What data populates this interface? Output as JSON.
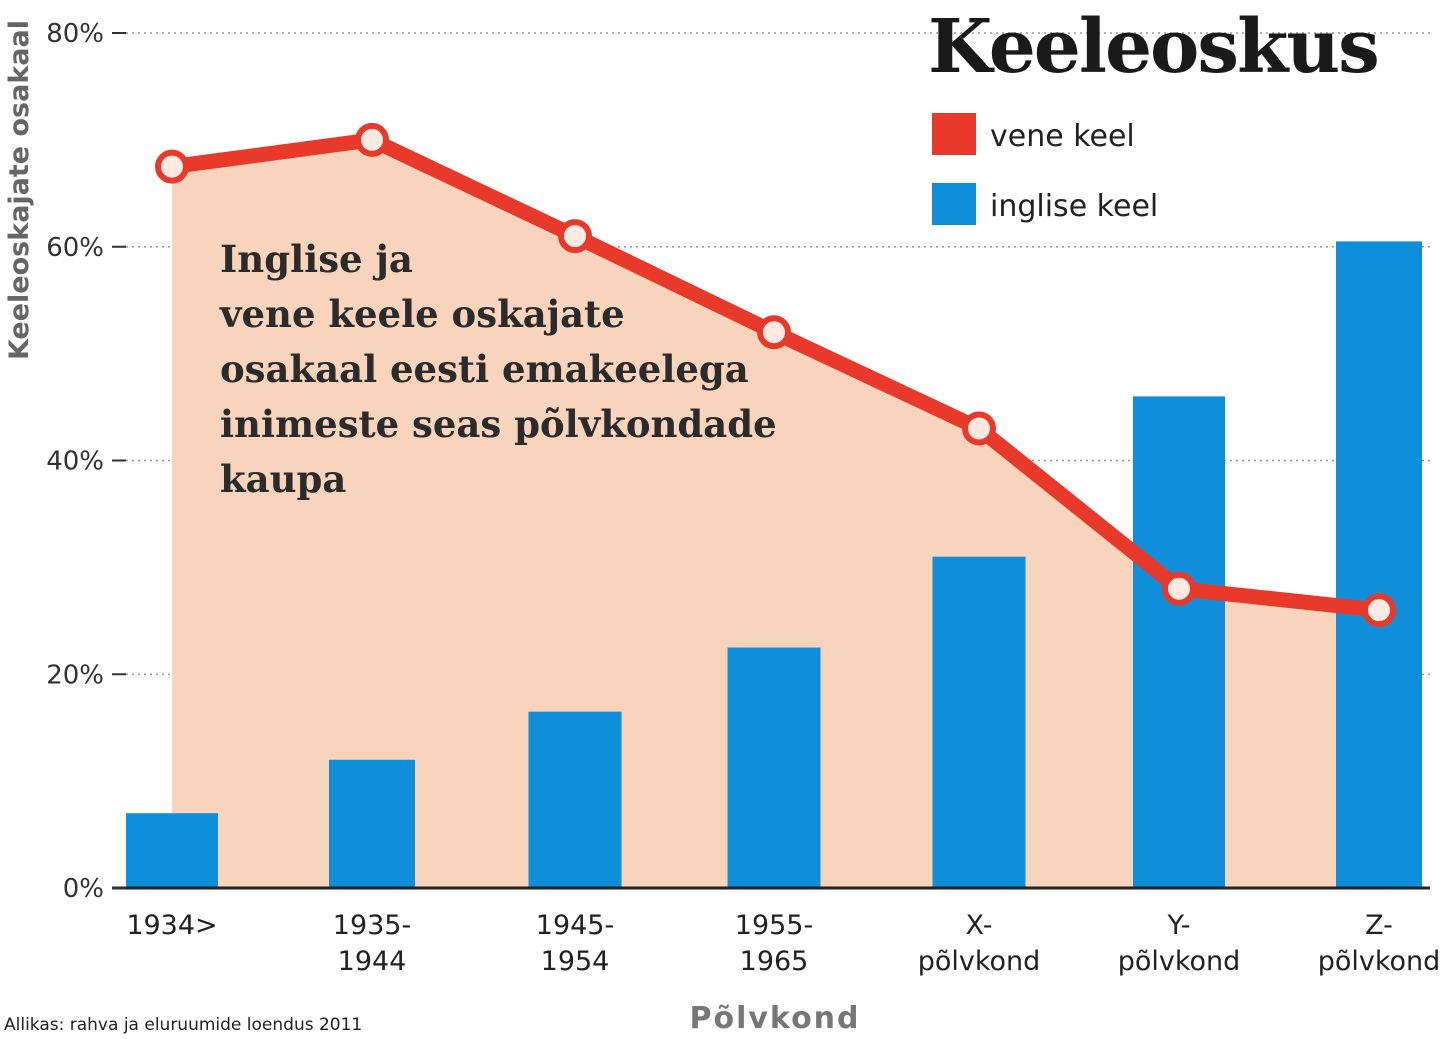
{
  "chart_data": {
    "type": "bar+line",
    "title": "Keeleoskus",
    "subtitle": "Inglise ja\nvene keele oskajate\nosakaal eesti emakeelega\ninimeste seas põlvkondade\nkaupa",
    "xlabel": "Põlvkond",
    "ylabel": "Keeleoskajate osakaal",
    "ylim": [
      0,
      80
    ],
    "yticks": [
      "0%",
      "20%",
      "40%",
      "60%",
      "80%"
    ],
    "ytick_values": [
      0,
      20,
      40,
      60,
      80
    ],
    "grid": "horizontal dotted",
    "legend_position": "top-right",
    "categories": [
      "1934>",
      "1935-\n1944",
      "1945-\n1954",
      "1955-\n1965",
      "X-\npõlvkond",
      "Y-\npõlvkond",
      "Z-\npõlvkond"
    ],
    "series": [
      {
        "name": "vene keel",
        "type": "line",
        "color": "#e8392b",
        "values": [
          67.5,
          70,
          61,
          52,
          43,
          28,
          26
        ]
      },
      {
        "name": "inglise keel",
        "type": "bar",
        "color": "#0f8fd9",
        "values": [
          7,
          12,
          16.5,
          22.5,
          31,
          46,
          60.5
        ]
      }
    ],
    "source": "Allikas: rahva ja eluruumide loendus 2011"
  },
  "colors": {
    "area_fill": "#f8d4bd",
    "grid": "#999999",
    "axis": "#222222"
  }
}
